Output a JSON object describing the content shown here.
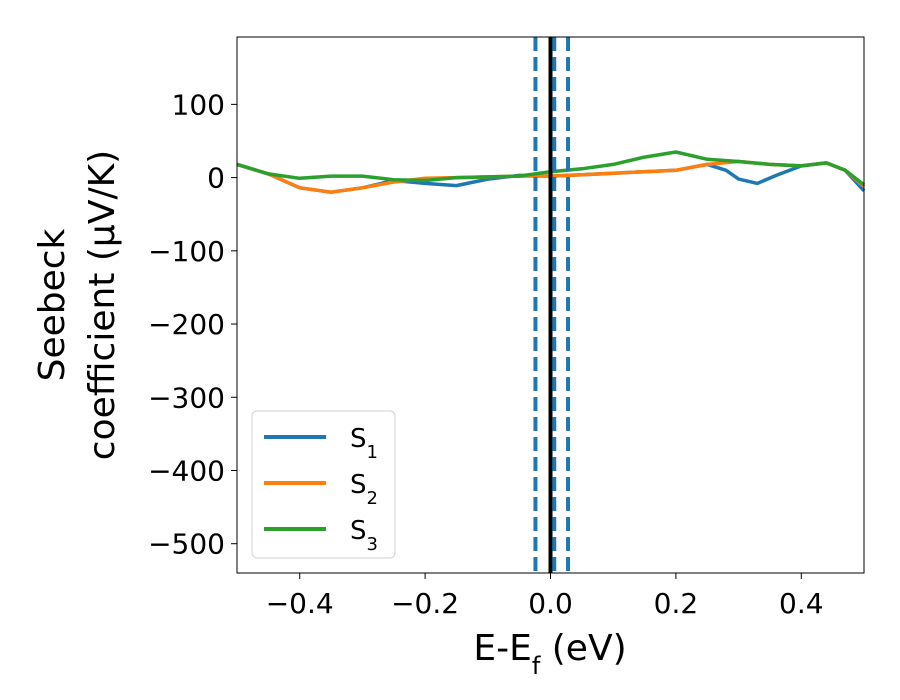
{
  "chart_data": {
    "type": "line",
    "xlabel": "E-E_f (eV)",
    "ylabel_line1": "Seebeck",
    "ylabel_line2": "coefficient  (μV/K)",
    "xlim": [
      -0.5,
      0.5
    ],
    "ylim": [
      -540,
      192
    ],
    "xticks": [
      -0.4,
      -0.2,
      0.0,
      0.2,
      0.4
    ],
    "xtick_labels": [
      "−0.4",
      "−0.2",
      "0.0",
      "0.2",
      "0.4"
    ],
    "yticks": [
      100,
      0,
      -100,
      -200,
      -300,
      -400,
      -500
    ],
    "ytick_labels": [
      "100",
      "0",
      "−100",
      "−200",
      "−300",
      "−400",
      "−500"
    ],
    "grid": false,
    "legend_position": "lower-left",
    "series": [
      {
        "name": "S_1",
        "color": "#1f77b4",
        "x": [
          -0.5,
          -0.45,
          -0.4,
          -0.35,
          -0.3,
          -0.25,
          -0.2,
          -0.15,
          -0.1,
          -0.05,
          0.0,
          0.05,
          0.1,
          0.15,
          0.2,
          0.25,
          0.28,
          0.3,
          0.33,
          0.36,
          0.4,
          0.44,
          0.47,
          0.5
        ],
        "y": [
          18,
          5,
          -14,
          -20,
          -14,
          -4,
          -8,
          -11,
          -2,
          3,
          2,
          4,
          6,
          8,
          10,
          18,
          10,
          -2,
          -8,
          3,
          16,
          20,
          10,
          -18
        ]
      },
      {
        "name": "S_2",
        "color": "#ff7f0e",
        "x": [
          -0.5,
          -0.45,
          -0.4,
          -0.35,
          -0.3,
          -0.25,
          -0.2,
          -0.15,
          -0.1,
          -0.05,
          0.0,
          0.05,
          0.1,
          0.15,
          0.2,
          0.25,
          0.3,
          0.35,
          0.4,
          0.44,
          0.47,
          0.5
        ],
        "y": [
          18,
          5,
          -14,
          -20,
          -14,
          -6,
          -1,
          0,
          1,
          2,
          2,
          4,
          6,
          8,
          10,
          18,
          22,
          18,
          16,
          20,
          10,
          -12
        ]
      },
      {
        "name": "S_3",
        "color": "#2ca02c",
        "x": [
          -0.5,
          -0.45,
          -0.4,
          -0.35,
          -0.3,
          -0.25,
          -0.2,
          -0.15,
          -0.1,
          -0.05,
          0.0,
          0.05,
          0.1,
          0.15,
          0.2,
          0.25,
          0.3,
          0.35,
          0.4,
          0.44,
          0.47,
          0.5
        ],
        "y": [
          18,
          5,
          -1,
          2,
          2,
          -3,
          -4,
          0,
          1,
          2,
          8,
          12,
          18,
          28,
          35,
          25,
          22,
          18,
          16,
          20,
          10,
          -10
        ]
      }
    ],
    "vlines": [
      {
        "x": 0.0,
        "color": "#000000",
        "style": "solid"
      },
      {
        "x": -0.024,
        "color": "#1f77b4",
        "style": "dashed"
      },
      {
        "x": 0.006,
        "color": "#1f77b4",
        "style": "dashed"
      },
      {
        "x": 0.028,
        "color": "#1f77b4",
        "style": "dashed"
      }
    ]
  }
}
